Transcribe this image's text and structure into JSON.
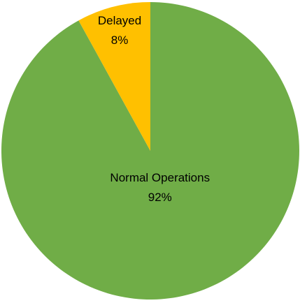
{
  "chart_data": {
    "type": "pie",
    "categories": [
      "Normal Operations",
      "Delayed"
    ],
    "values": [
      92,
      8
    ],
    "value_labels": [
      "92%",
      "8%"
    ],
    "colors": [
      "#70ad47",
      "#ffc000"
    ]
  }
}
